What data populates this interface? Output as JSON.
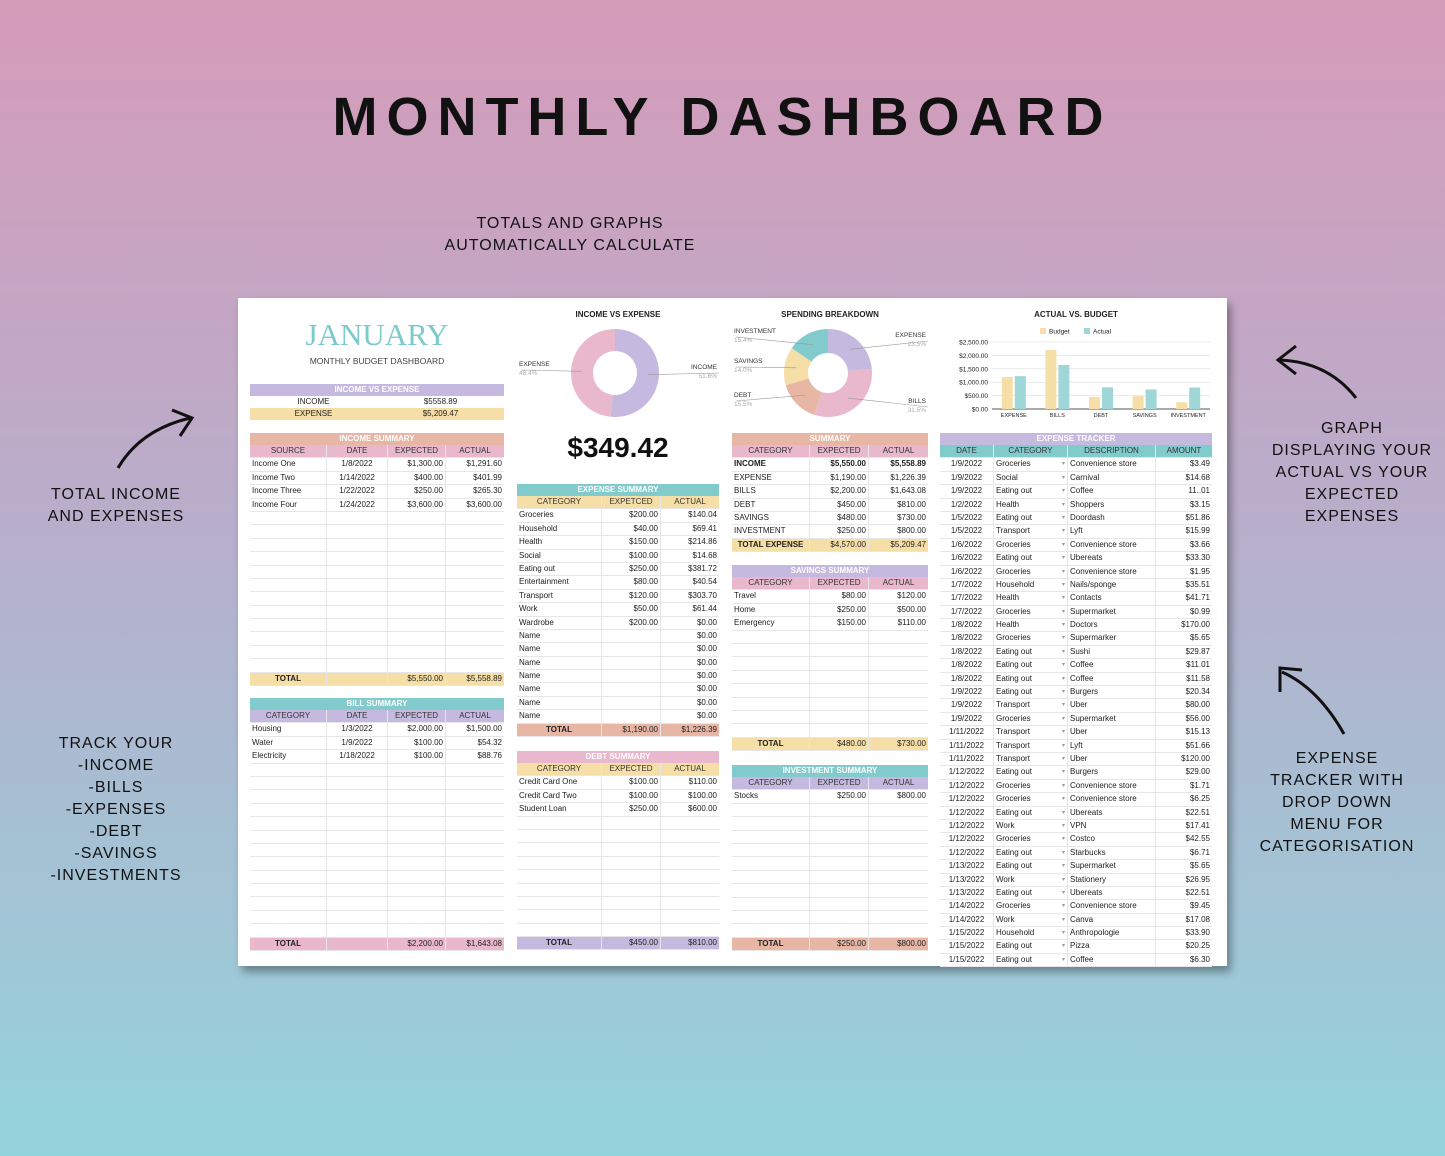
{
  "title": "MONTHLY DASHBOARD",
  "notes": {
    "top": [
      "TOTALS AND GRAPHS",
      "AUTOMATICALLY CALCULATE"
    ],
    "left1": [
      "TOTAL INCOME",
      "AND EXPENSES"
    ],
    "left2": [
      "TRACK YOUR",
      "-INCOME",
      "-BILLS",
      "-EXPENSES",
      "-DEBT",
      "-SAVINGS",
      "-INVESTMENTS"
    ],
    "right1": [
      "GRAPH",
      "DISPLAYING YOUR",
      "ACTUAL VS YOUR",
      "EXPECTED",
      "EXPENSES"
    ],
    "right2": [
      "EXPENSE",
      "TRACKER WITH",
      "DROP DOWN",
      "MENU FOR",
      "CATEGORISATION"
    ]
  },
  "colors": {
    "purple": "#c6b9e0",
    "salmon": "#e7b6a5",
    "pink": "#e9b8cd",
    "yellow": "#f5dfa6",
    "teal": "#82cbcd",
    "month": "#7ccbcc"
  },
  "header": {
    "month": "JANUARY",
    "subtitle": "MONTHLY BUDGET DASHBOARD"
  },
  "income_vs_expense_table": {
    "title": "INCOME VS EXPENSE",
    "rows": [
      [
        "INCOME",
        "$5558.89"
      ],
      [
        "EXPENSE",
        "$5,209.47"
      ]
    ]
  },
  "balance": "$349.42",
  "tables": {
    "income": {
      "title": "INCOME SUMMARY",
      "headers": [
        "SOURCE",
        "DATE",
        "EXPECTED",
        "ACTUAL"
      ],
      "rows": [
        [
          "Income One",
          "1/8/2022",
          "$1,300.00",
          "$1,291.60"
        ],
        [
          "Income Two",
          "1/14/2022",
          "$400.00",
          "$401.99"
        ],
        [
          "Income Three",
          "1/22/2022",
          "$250.00",
          "$265.30"
        ],
        [
          "Income Four",
          "1/24/2022",
          "$3,600.00",
          "$3,600.00"
        ]
      ],
      "total": [
        "TOTAL",
        "",
        "$5,550.00",
        "$5,558.89"
      ]
    },
    "bills": {
      "title": "BILL SUMMARY",
      "headers": [
        "CATEGORY",
        "DATE",
        "EXPECTED",
        "ACTUAL"
      ],
      "rows": [
        [
          "Housing",
          "1/3/2022",
          "$2,000.00",
          "$1,500.00"
        ],
        [
          "Water",
          "1/9/2022",
          "$100.00",
          "$54.32"
        ],
        [
          "Electricity",
          "1/18/2022",
          "$100.00",
          "$88.76"
        ]
      ],
      "total": [
        "TOTAL",
        "",
        "$2,200.00",
        "$1,643.08"
      ]
    },
    "expense": {
      "title": "EXPENSE SUMMARY",
      "headers": [
        "CATEGORY",
        "EXPETCED",
        "ACTUAL"
      ],
      "rows": [
        [
          "Groceries",
          "$200.00",
          "$140.04"
        ],
        [
          "Household",
          "$40.00",
          "$69.41"
        ],
        [
          "Health",
          "$150.00",
          "$214.86"
        ],
        [
          "Social",
          "$100.00",
          "$14.68"
        ],
        [
          "Eating out",
          "$250.00",
          "$381.72"
        ],
        [
          "Entertainment",
          "$80.00",
          "$40.54"
        ],
        [
          "Transport",
          "$120.00",
          "$303.70"
        ],
        [
          "Work",
          "$50.00",
          "$61.44"
        ],
        [
          "Wardrobe",
          "$200.00",
          "$0.00"
        ],
        [
          "Name",
          "",
          "$0.00"
        ],
        [
          "Name",
          "",
          "$0.00"
        ],
        [
          "Name",
          "",
          "$0.00"
        ],
        [
          "Name",
          "",
          "$0.00"
        ],
        [
          "Name",
          "",
          "$0.00"
        ],
        [
          "Name",
          "",
          "$0.00"
        ],
        [
          "Name",
          "",
          "$0.00"
        ]
      ],
      "total": [
        "TOTAL",
        "$1,190.00",
        "$1,226.39"
      ]
    },
    "debt": {
      "title": "DEBT SUMMARY",
      "headers": [
        "CATEGORY",
        "EXPECTED",
        "ACTUAL"
      ],
      "rows": [
        [
          "Credit Card One",
          "$100.00",
          "$110.00"
        ],
        [
          "Credit Card Two",
          "$100.00",
          "$100.00"
        ],
        [
          "Student Loan",
          "$250.00",
          "$600.00"
        ]
      ],
      "total": [
        "TOTAL",
        "$450.00",
        "$810.00"
      ]
    },
    "summary": {
      "title": "SUMMARY",
      "headers": [
        "CATEGORY",
        "EXPECTED",
        "ACTUAL"
      ],
      "rows": [
        [
          "INCOME",
          "$5,550.00",
          "$5,558.89"
        ],
        [
          "EXPENSE",
          "$1,190.00",
          "$1,226.39"
        ],
        [
          "BILLS",
          "$2,200.00",
          "$1,643.08"
        ],
        [
          "DEBT",
          "$450.00",
          "$810.00"
        ],
        [
          "SAVINGS",
          "$480.00",
          "$730.00"
        ],
        [
          "INVESTMENT",
          "$250.00",
          "$800.00"
        ]
      ],
      "total": [
        "TOTAL EXPENSE",
        "$4,570.00",
        "$5,209.47"
      ]
    },
    "savings": {
      "title": "SAVINGS SUMMARY",
      "headers": [
        "CATEGORY",
        "EXPECTED",
        "ACTUAL"
      ],
      "rows": [
        [
          "Travel",
          "$80.00",
          "$120.00"
        ],
        [
          "Home",
          "$250.00",
          "$500.00"
        ],
        [
          "Emergency",
          "$150.00",
          "$110.00"
        ]
      ],
      "total": [
        "TOTAL",
        "$480.00",
        "$730.00"
      ]
    },
    "investment": {
      "title": "INVESTMENT SUMMARY",
      "headers": [
        "CATEGORY",
        "EXPECTED",
        "ACTUAL"
      ],
      "rows": [
        [
          "Stocks",
          "$250.00",
          "$800.00"
        ]
      ],
      "total": [
        "TOTAL",
        "$250.00",
        "$800.00"
      ]
    },
    "tracker": {
      "title": "EXPENSE TRACKER",
      "headers": [
        "DATE",
        "CATEGORY",
        "DESCRIPTION",
        "AMOUNT"
      ],
      "rows": [
        [
          "1/9/2022",
          "Groceries",
          "Convenience store",
          "$3.49"
        ],
        [
          "1/9/2022",
          "Social",
          "Carnival",
          "$14.68"
        ],
        [
          "1/9/2022",
          "Eating out",
          "Coffee",
          "11..01"
        ],
        [
          "1/2/2022",
          "Health",
          "Shoppers",
          "$3.15"
        ],
        [
          "1/5/2022",
          "Eating out",
          "Doordash",
          "$51.86"
        ],
        [
          "1/5/2022",
          "Transport",
          "Lyft",
          "$15.99"
        ],
        [
          "1/6/2022",
          "Groceries",
          "Convenience store",
          "$3.66"
        ],
        [
          "1/6/2022",
          "Eating out",
          "Ubereats",
          "$33.30"
        ],
        [
          "1/6/2022",
          "Groceries",
          "Convenience store",
          "$1.95"
        ],
        [
          "1/7/2022",
          "Household",
          "Nails/sponge",
          "$35.51"
        ],
        [
          "1/7/2022",
          "Health",
          "Contacts",
          "$41.71"
        ],
        [
          "1/7/2022",
          "Groceries",
          "Supermarket",
          "$0.99"
        ],
        [
          "1/8/2022",
          "Health",
          "Doctors",
          "$170.00"
        ],
        [
          "1/8/2022",
          "Groceries",
          "Supermarker",
          "$5.65"
        ],
        [
          "1/8/2022",
          "Eating out",
          "Sushi",
          "$29.87"
        ],
        [
          "1/8/2022",
          "Eating out",
          "Coffee",
          "$11.01"
        ],
        [
          "1/8/2022",
          "Eating out",
          "Coffee",
          "$11.58"
        ],
        [
          "1/9/2022",
          "Eating out",
          "Burgers",
          "$20.34"
        ],
        [
          "1/9/2022",
          "Transport",
          "Uber",
          "$80.00"
        ],
        [
          "1/9/2022",
          "Groceries",
          "Supermarket",
          "$56.00"
        ],
        [
          "1/11/2022",
          "Transport",
          "Uber",
          "$15.13"
        ],
        [
          "1/11/2022",
          "Transport",
          "Lyft",
          "$51.66"
        ],
        [
          "1/11/2022",
          "Transport",
          "Uber",
          "$120.00"
        ],
        [
          "1/12/2022",
          "Eating out",
          "Burgers",
          "$29.00"
        ],
        [
          "1/12/2022",
          "Groceries",
          "Convenience store",
          "$1.71"
        ],
        [
          "1/12/2022",
          "Groceries",
          "Convenience store",
          "$6.25"
        ],
        [
          "1/12/2022",
          "Eating out",
          "Ubereats",
          "$22.51"
        ],
        [
          "1/12/2022",
          "Work",
          "VPN",
          "$17.41"
        ],
        [
          "1/12/2022",
          "Groceries",
          "Costco",
          "$42.55"
        ],
        [
          "1/12/2022",
          "Eating out",
          "Starbucks",
          "$6.71"
        ],
        [
          "1/13/2022",
          "Eating out",
          "Supermarket",
          "$5.65"
        ],
        [
          "1/13/2022",
          "Work",
          "Stationery",
          "$26.95"
        ],
        [
          "1/13/2022",
          "Eating out",
          "Ubereats",
          "$22.51"
        ],
        [
          "1/14/2022",
          "Groceries",
          "Convenience store",
          "$9.45"
        ],
        [
          "1/14/2022",
          "Work",
          "Canva",
          "$17.08"
        ],
        [
          "1/15/2022",
          "Household",
          "Anthropologie",
          "$33.90"
        ],
        [
          "1/15/2022",
          "Eating out",
          "Pizza",
          "$20.25"
        ],
        [
          "1/15/2022",
          "Eating out",
          "Coffee",
          "$6.30"
        ]
      ]
    }
  },
  "chart_data": [
    {
      "type": "pie",
      "title": "INCOME VS EXPENSE",
      "donut": true,
      "categories": [
        "INCOME",
        "EXPENSE"
      ],
      "values": [
        51.6,
        48.4
      ],
      "labels": [
        "51.6%",
        "48.4%"
      ],
      "colors": [
        "#c6b9e0",
        "#e9b8cd"
      ]
    },
    {
      "type": "pie",
      "title": "SPENDING BREAKDOWN",
      "donut": true,
      "categories": [
        "EXPENSE",
        "BILLS",
        "DEBT",
        "SAVINGS",
        "INVESTMENT"
      ],
      "values": [
        23.5,
        31.5,
        15.5,
        14.0,
        15.4
      ],
      "labels": [
        "23.5%",
        "31.5%",
        "15.5%",
        "14.0%",
        "15.4%"
      ],
      "colors": [
        "#c6b9e0",
        "#e9b8cd",
        "#e7b6a5",
        "#f5dfa6",
        "#82cbcd"
      ]
    },
    {
      "type": "bar",
      "title": "ACTUAL VS. BUDGET",
      "categories": [
        "EXPENSE",
        "BILLS",
        "DEBT",
        "SAVINGS",
        "INVESTMENT"
      ],
      "series": [
        {
          "name": "Budget",
          "values": [
            1190,
            2200,
            450,
            480,
            250
          ],
          "color": "#f5dfa6"
        },
        {
          "name": "Actual",
          "values": [
            1226.39,
            1643.08,
            810,
            730,
            800
          ],
          "color": "#9fd6d8"
        }
      ],
      "yticks": [
        "$0.00",
        "$500.00",
        "$1,000.00",
        "$1,500.00",
        "$2,000.00",
        "$2,500.00"
      ],
      "ylim": [
        0,
        2500
      ],
      "grid": true,
      "legend": "top"
    }
  ]
}
